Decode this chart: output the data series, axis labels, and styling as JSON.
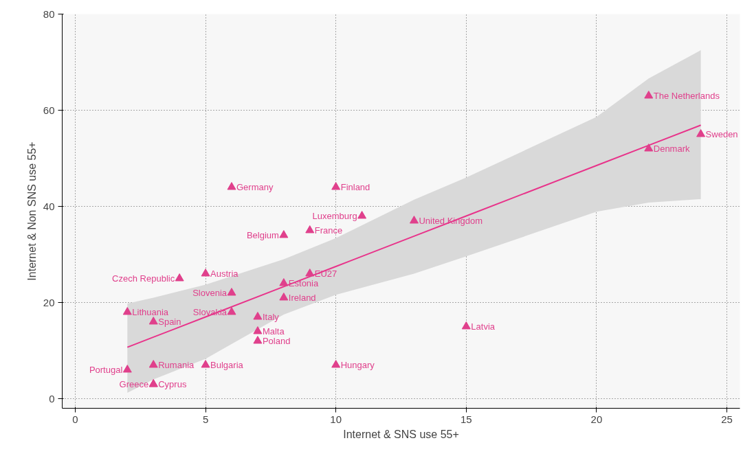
{
  "chart_data": {
    "type": "scatter",
    "xlabel": "Internet & SNS use 55+",
    "ylabel": "Internet & Non SNS use 55+",
    "xlim": [
      -0.5,
      25.5
    ],
    "ylim": [
      -2,
      80
    ],
    "xticks": [
      0,
      5,
      10,
      15,
      20,
      25
    ],
    "yticks": [
      0,
      20,
      40,
      60,
      80
    ],
    "grid": true,
    "series": [
      {
        "type": "scatter",
        "marker": "triangle",
        "color": "#e0408c",
        "x": [
          2,
          3,
          3,
          3,
          5,
          2,
          3,
          4,
          5,
          6,
          6,
          7,
          7,
          7,
          8,
          8,
          9,
          8,
          9,
          6,
          10,
          11,
          13,
          15,
          10,
          22,
          22,
          24
        ],
        "values": [
          6,
          3,
          3,
          7,
          7,
          18,
          16,
          25,
          26,
          22,
          18,
          17,
          14,
          12,
          24,
          21,
          26,
          34,
          35,
          44,
          44,
          38,
          37,
          15,
          7,
          63,
          52,
          55
        ]
      },
      {
        "type": "line",
        "color": "#e8338a",
        "line_style": "solid",
        "x": [
          2,
          3,
          5,
          8,
          10,
          13,
          15,
          20,
          22,
          24
        ],
        "values": [
          10.7,
          12.8,
          17,
          23.3,
          27.5,
          33.8,
          38,
          48.5,
          52.7,
          56.9
        ],
        "lower": [
          1.2,
          4,
          8.3,
          17.5,
          21.6,
          26,
          29.6,
          38.9,
          40.8,
          41.5
        ],
        "upper": [
          19.8,
          21,
          23.7,
          29,
          33.4,
          41.4,
          46,
          58.6,
          66.6,
          72.5
        ]
      }
    ],
    "annotations": [
      {
        "text": "Portugal",
        "x": 2,
        "y": 6
      },
      {
        "text": "Greece",
        "x": 3,
        "y": 3
      },
      {
        "text": "Cyprus",
        "x": 3,
        "y": 3
      },
      {
        "text": "Rumania",
        "x": 3,
        "y": 7
      },
      {
        "text": "Bulgaria",
        "x": 5,
        "y": 7
      },
      {
        "text": "Lithuania",
        "x": 2,
        "y": 18
      },
      {
        "text": "Spain",
        "x": 3,
        "y": 16
      },
      {
        "text": "Czech Republic",
        "x": 4,
        "y": 25
      },
      {
        "text": "Austria",
        "x": 5,
        "y": 26
      },
      {
        "text": "Slovenia",
        "x": 6,
        "y": 22
      },
      {
        "text": "Slovakia",
        "x": 6,
        "y": 18
      },
      {
        "text": "Italy",
        "x": 7,
        "y": 17
      },
      {
        "text": "Malta",
        "x": 7,
        "y": 14
      },
      {
        "text": "Poland",
        "x": 7,
        "y": 12
      },
      {
        "text": "Estonia",
        "x": 8,
        "y": 24
      },
      {
        "text": "Ireland",
        "x": 8,
        "y": 21
      },
      {
        "text": "EU27",
        "x": 9,
        "y": 26
      },
      {
        "text": "Belgium",
        "x": 8,
        "y": 34
      },
      {
        "text": "France",
        "x": 9,
        "y": 35
      },
      {
        "text": "Germany",
        "x": 6,
        "y": 44
      },
      {
        "text": "Finland",
        "x": 10,
        "y": 44
      },
      {
        "text": "Luxemburg",
        "x": 11,
        "y": 38
      },
      {
        "text": "United Kingdom",
        "x": 13,
        "y": 37
      },
      {
        "text": "Latvia",
        "x": 15,
        "y": 15
      },
      {
        "text": "Hungary",
        "x": 10,
        "y": 7
      },
      {
        "text": "The Netherlands",
        "x": 22,
        "y": 63
      },
      {
        "text": "Denmark",
        "x": 22,
        "y": 52
      },
      {
        "text": "Sweden",
        "x": 24,
        "y": 55
      }
    ]
  }
}
